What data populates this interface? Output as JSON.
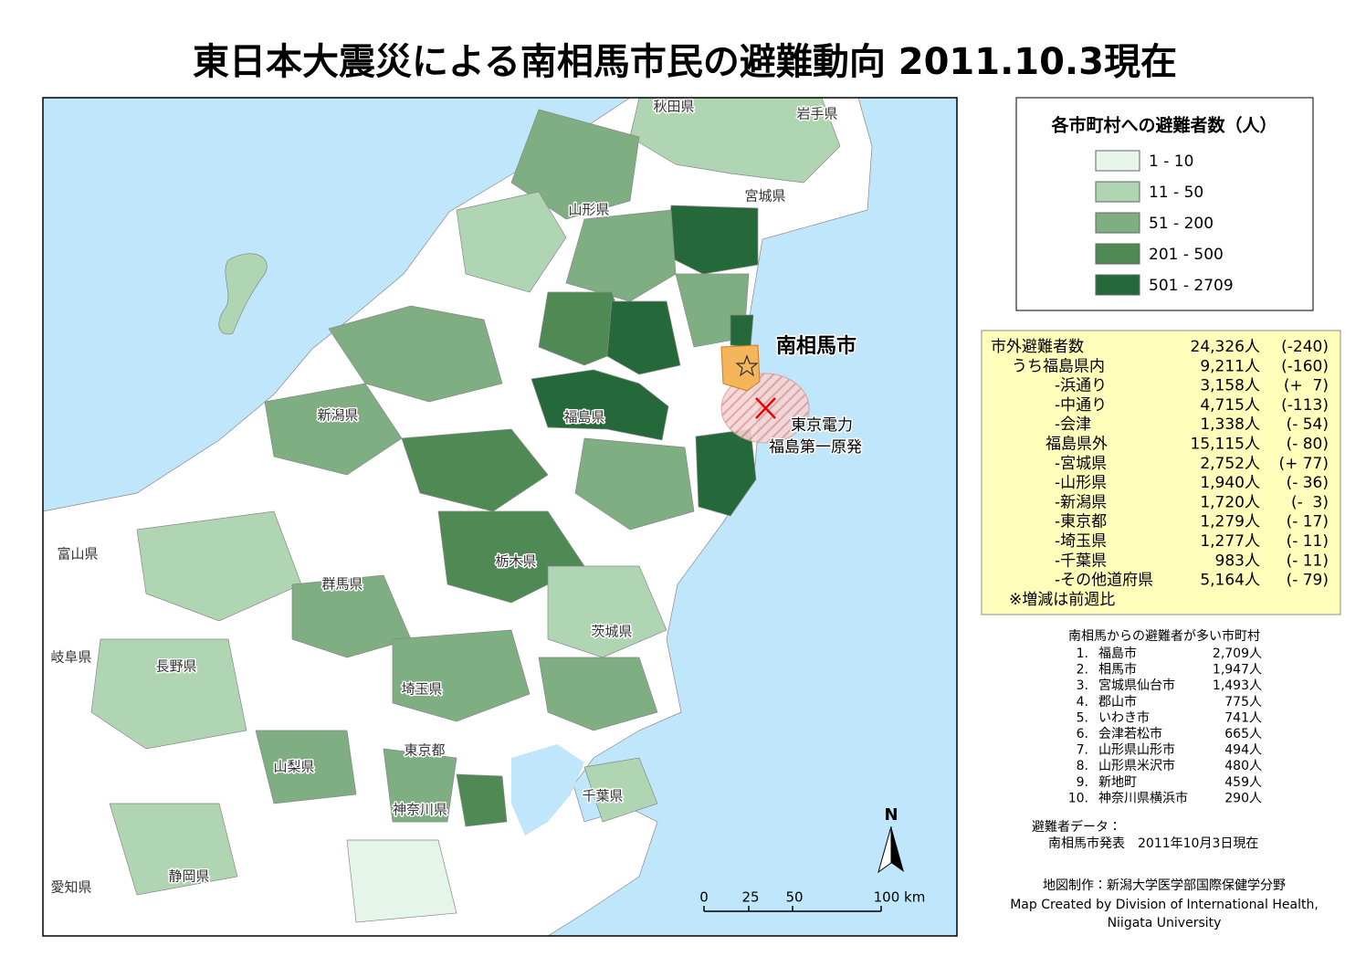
{
  "title": "東日本大震災による南相馬市民の避難動向 2011.10.3現在",
  "map_labels": [
    "秋田県",
    "岩手県",
    "宮城県",
    "山形県",
    "新潟県",
    "福島県",
    "富山県",
    "群馬県",
    "栃木県",
    "茨城県",
    "岐阜県",
    "長野県",
    "埼玉県",
    "東京都",
    "山梨県",
    "神奈川県",
    "千葉県",
    "愛知県",
    "静岡県"
  ],
  "city_label": "南相馬市",
  "plant_label": [
    "東京電力",
    "福島第一原発"
  ],
  "north": "N",
  "scale_labels": [
    "0",
    "25",
    "50",
    "100 km"
  ],
  "legend": {
    "title": "各市町村への避難者数（人）",
    "classes": [
      {
        "label": "1 - 10",
        "color": "#e6f5e9"
      },
      {
        "label": "11 - 50",
        "color": "#b0d5b3"
      },
      {
        "label": "51 - 200",
        "color": "#7eae82"
      },
      {
        "label": "201 - 500",
        "color": "#4f8a55"
      },
      {
        "label": "501 - 2709",
        "color": "#25693a"
      }
    ]
  },
  "stats": {
    "rows": [
      [
        "市外避難者数",
        "24,326人",
        "(-240)"
      ],
      [
        "うち福島県内",
        "9,211人",
        "(-160)"
      ],
      [
        "-浜通り",
        "3,158人",
        "(+  7)"
      ],
      [
        "-中通り",
        "4,715人",
        "(-113)"
      ],
      [
        "-会津",
        "1,338人",
        "(- 54)"
      ],
      [
        "福島県外",
        "15,115人",
        "(- 80)"
      ],
      [
        "-宮城県",
        "2,752人",
        "(+ 77)"
      ],
      [
        "-山形県",
        "1,940人",
        "(- 36)"
      ],
      [
        "-新潟県",
        "1,720人",
        "(-  3)"
      ],
      [
        "-東京都",
        "1,279人",
        "(- 17)"
      ],
      [
        "-埼玉県",
        "1,277人",
        "(- 11)"
      ],
      [
        "-千葉県",
        "983人",
        "(- 11)"
      ],
      [
        "-その他道府県",
        "5,164人",
        "(- 79)"
      ]
    ],
    "note": "※増減は前週比"
  },
  "ranking": {
    "title": "南相馬からの避難者が多い市町村",
    "rows": [
      [
        "1.",
        "福島市",
        "2,709人"
      ],
      [
        "2.",
        "相馬市",
        "1,947人"
      ],
      [
        "3.",
        "宮城県仙台市",
        "1,493人"
      ],
      [
        "4.",
        "郡山市",
        "775人"
      ],
      [
        "5.",
        "いわき市",
        "741人"
      ],
      [
        "6.",
        "会津若松市",
        "665人"
      ],
      [
        "7.",
        "山形県山形市",
        "494人"
      ],
      [
        "8.",
        "山形県米沢市",
        "480人"
      ],
      [
        "9.",
        "新地町",
        "459人"
      ],
      [
        "10.",
        "神奈川県横浜市",
        "290人"
      ]
    ]
  },
  "source": {
    "label": "避難者データ：",
    "text": "南相馬市発表　2011年10月3日現在"
  },
  "credit": [
    "地図制作：新潟大学医学部国際保健学分野",
    "Map Created by Division of International Health,",
    "Niigata University"
  ]
}
